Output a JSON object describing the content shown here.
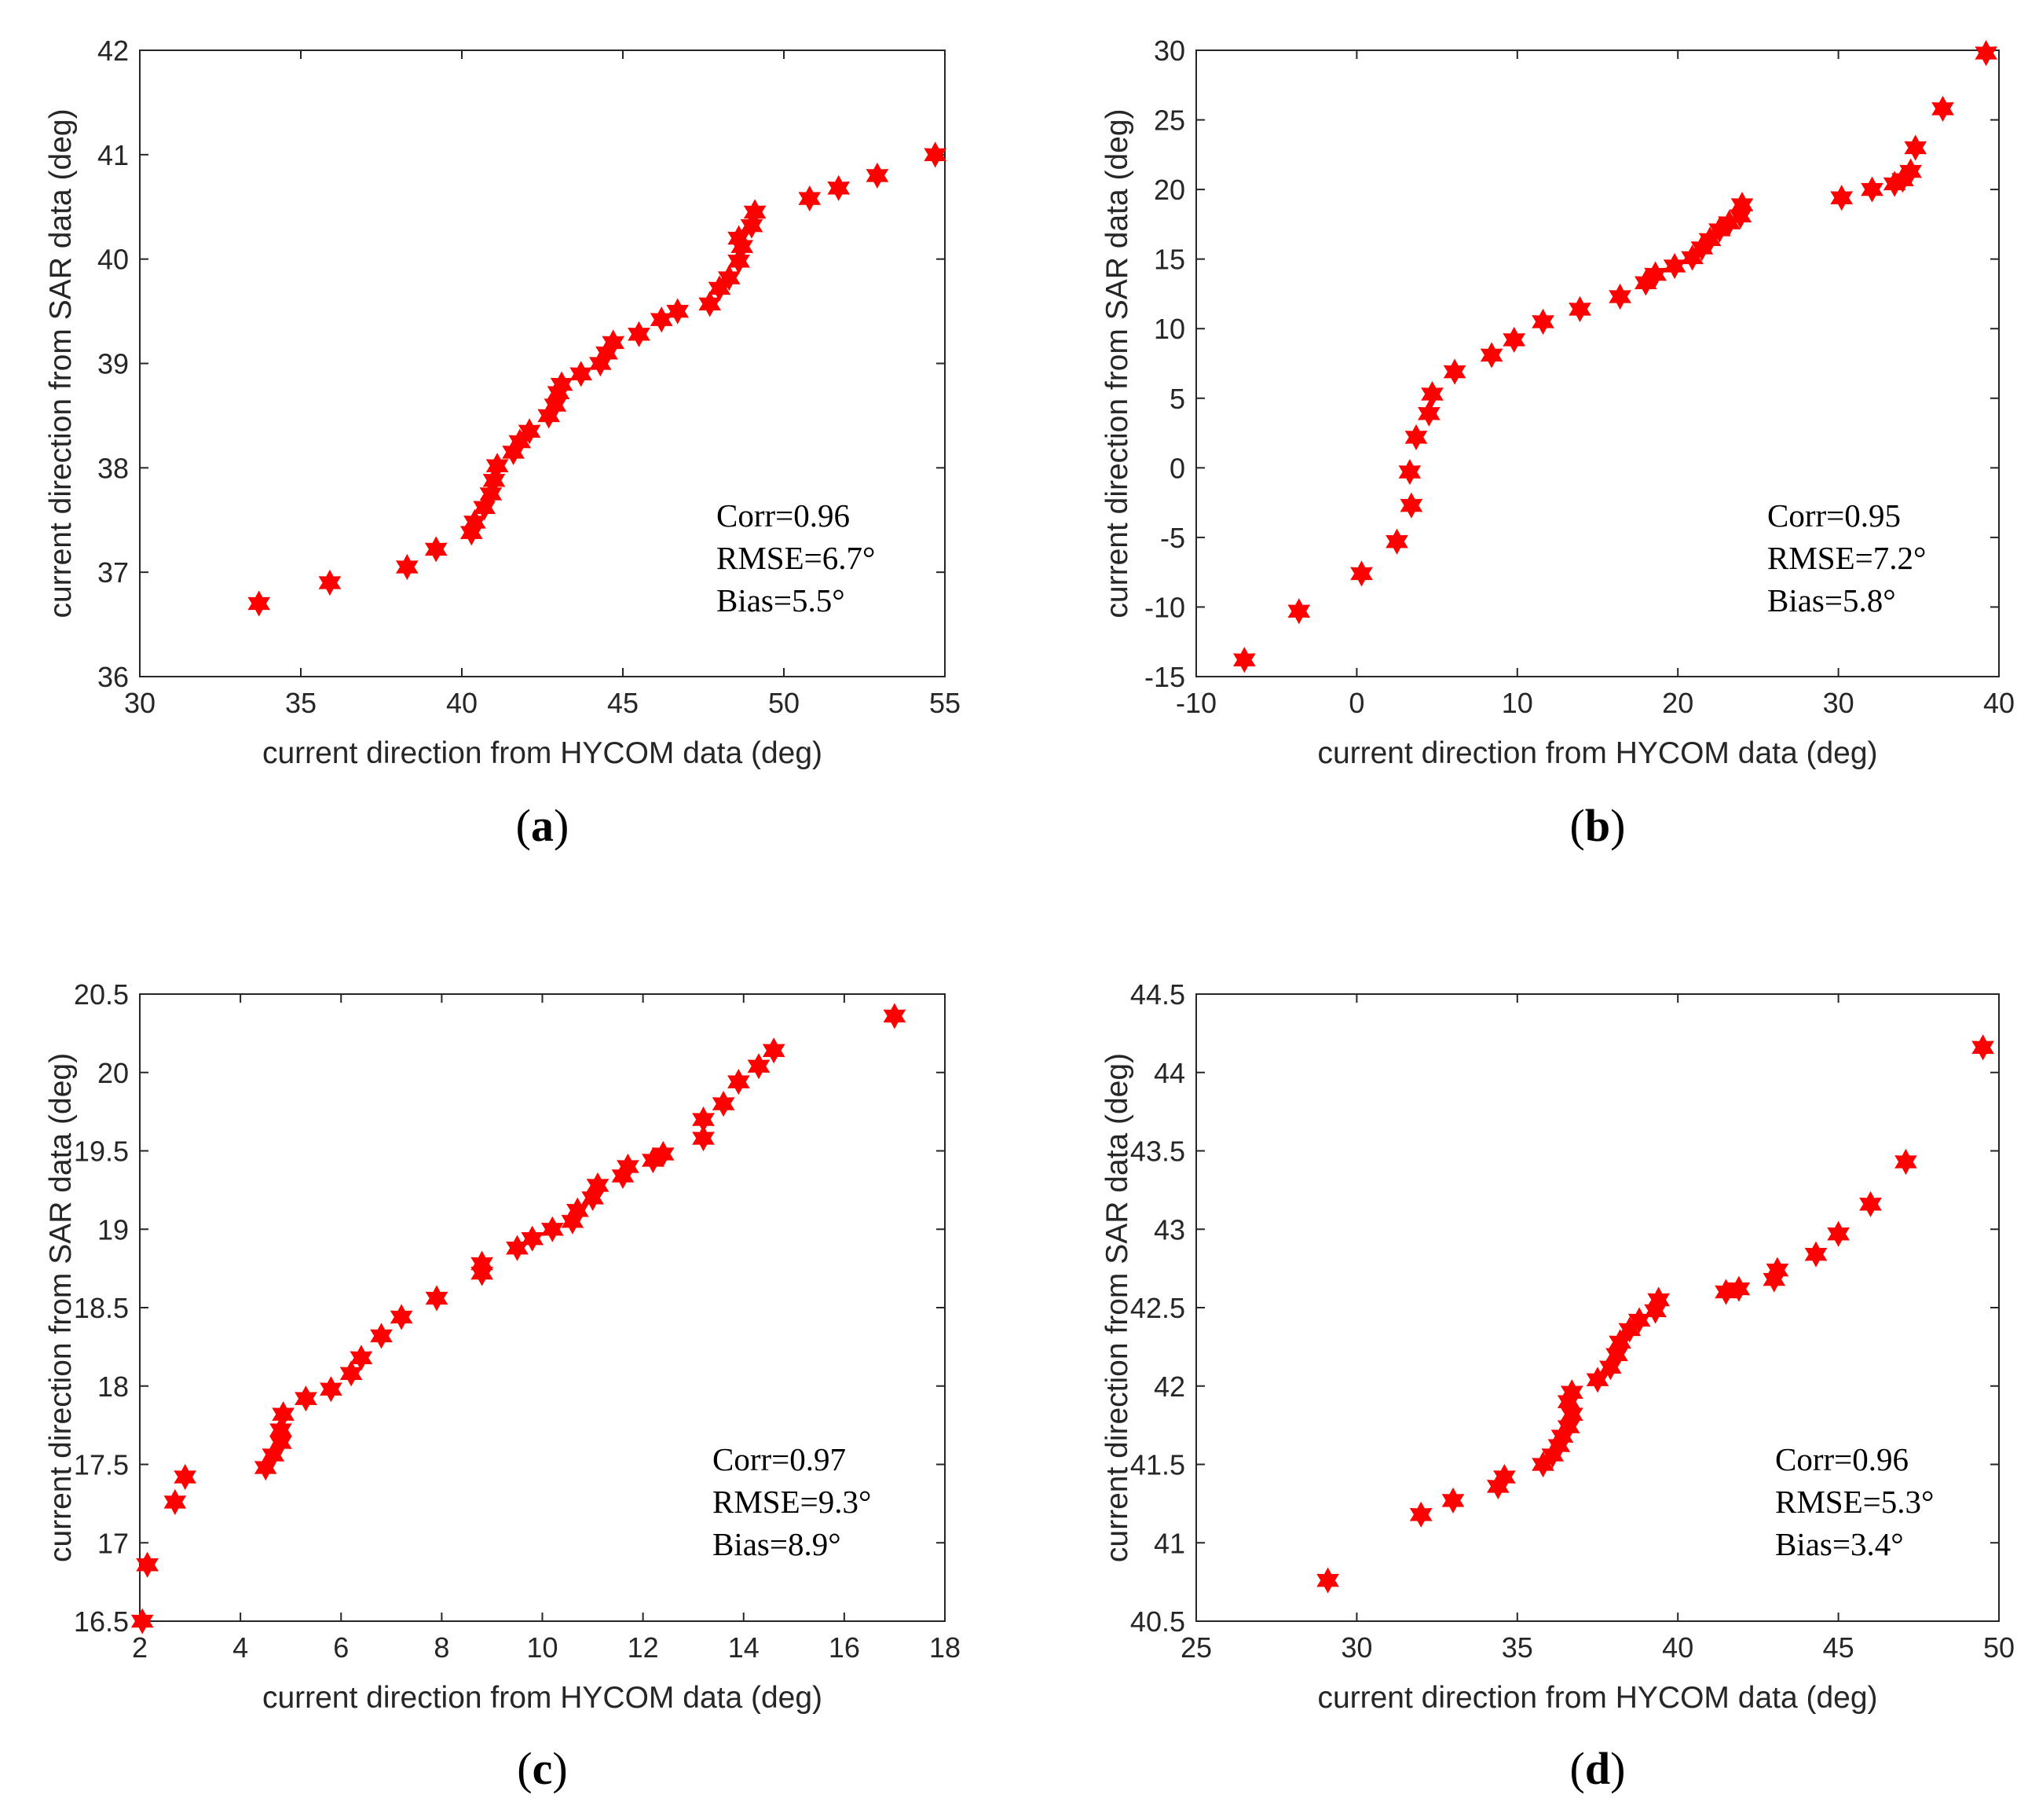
{
  "marker_color": "#ff0000",
  "chart_data": [
    {
      "type": "scatter",
      "panel_letter": "a",
      "xlabel": "current direction from HYCOM data (deg)",
      "ylabel": "current direction from SAR data (deg)",
      "xlim": [
        30,
        55
      ],
      "ylim": [
        36,
        42
      ],
      "xticks": [
        30,
        35,
        40,
        45,
        50,
        55
      ],
      "yticks": [
        36,
        37,
        38,
        39,
        40,
        41,
        42
      ],
      "stats": {
        "corr": "Corr=0.96",
        "rmse": "RMSE=6.7°",
        "bias": "Bias=5.5°"
      },
      "points": [
        [
          33.7,
          36.7
        ],
        [
          35.9,
          36.9
        ],
        [
          38.3,
          37.05
        ],
        [
          39.2,
          37.22
        ],
        [
          40.3,
          37.38
        ],
        [
          40.4,
          37.48
        ],
        [
          40.7,
          37.62
        ],
        [
          40.9,
          37.75
        ],
        [
          41.0,
          37.88
        ],
        [
          41.1,
          38.02
        ],
        [
          41.6,
          38.15
        ],
        [
          41.8,
          38.25
        ],
        [
          42.1,
          38.35
        ],
        [
          42.7,
          38.5
        ],
        [
          42.9,
          38.6
        ],
        [
          43.0,
          38.72
        ],
        [
          43.1,
          38.8
        ],
        [
          43.7,
          38.9
        ],
        [
          44.3,
          39.0
        ],
        [
          44.5,
          39.1
        ],
        [
          44.7,
          39.2
        ],
        [
          45.5,
          39.28
        ],
        [
          46.2,
          39.42
        ],
        [
          46.7,
          39.5
        ],
        [
          47.7,
          39.57
        ],
        [
          48.0,
          39.72
        ],
        [
          48.3,
          39.82
        ],
        [
          48.6,
          39.98
        ],
        [
          48.7,
          40.12
        ],
        [
          48.6,
          40.2
        ],
        [
          49.0,
          40.32
        ],
        [
          49.1,
          40.45
        ],
        [
          50.8,
          40.58
        ],
        [
          51.7,
          40.68
        ],
        [
          52.9,
          40.8
        ],
        [
          54.7,
          41.0
        ]
      ]
    },
    {
      "type": "scatter",
      "panel_letter": "b",
      "xlabel": "current direction from HYCOM data (deg)",
      "ylabel": "current direction from SAR data (deg)",
      "xlim": [
        -10,
        40
      ],
      "ylim": [
        -15,
        30
      ],
      "xticks": [
        -10,
        0,
        10,
        20,
        30,
        40
      ],
      "yticks": [
        -15,
        -10,
        -5,
        0,
        5,
        10,
        15,
        20,
        25,
        30
      ],
      "stats": {
        "corr": "Corr=0.95",
        "rmse": "RMSE=7.2°",
        "bias": "Bias=5.8°"
      },
      "points": [
        [
          -7.0,
          -13.8
        ],
        [
          -3.6,
          -10.3
        ],
        [
          0.3,
          -7.6
        ],
        [
          2.5,
          -5.3
        ],
        [
          3.4,
          -2.7
        ],
        [
          3.3,
          -0.3
        ],
        [
          3.7,
          2.2
        ],
        [
          4.5,
          3.9
        ],
        [
          4.7,
          5.3
        ],
        [
          6.1,
          6.9
        ],
        [
          8.4,
          8.1
        ],
        [
          9.8,
          9.2
        ],
        [
          11.6,
          10.5
        ],
        [
          13.9,
          11.4
        ],
        [
          16.4,
          12.3
        ],
        [
          18.0,
          13.3
        ],
        [
          18.6,
          13.9
        ],
        [
          19.8,
          14.5
        ],
        [
          20.9,
          15.1
        ],
        [
          21.5,
          15.8
        ],
        [
          22.0,
          16.4
        ],
        [
          22.6,
          17.1
        ],
        [
          23.2,
          17.6
        ],
        [
          23.9,
          18.1
        ],
        [
          24.0,
          18.9
        ],
        [
          30.2,
          19.4
        ],
        [
          32.1,
          20.0
        ],
        [
          33.5,
          20.4
        ],
        [
          34.0,
          20.7
        ],
        [
          34.5,
          21.3
        ],
        [
          34.8,
          23.0
        ],
        [
          36.5,
          25.8
        ],
        [
          39.2,
          29.8
        ]
      ]
    },
    {
      "type": "scatter",
      "panel_letter": "c",
      "xlabel": "current direction from HYCOM data (deg)",
      "ylabel": "current direction from SAR data (deg)",
      "xlim": [
        2,
        18
      ],
      "ylim": [
        16.5,
        20.5
      ],
      "xticks": [
        2,
        4,
        6,
        8,
        10,
        12,
        14,
        16,
        18
      ],
      "yticks": [
        16.5,
        17,
        17.5,
        18,
        18.5,
        19,
        19.5,
        20,
        20.5
      ],
      "stats": {
        "corr": "Corr=0.97",
        "rmse": "RMSE=9.3°",
        "bias": "Bias=8.9°"
      },
      "points": [
        [
          2.05,
          16.5
        ],
        [
          2.15,
          16.86
        ],
        [
          2.7,
          17.26
        ],
        [
          2.9,
          17.42
        ],
        [
          4.5,
          17.48
        ],
        [
          4.65,
          17.56
        ],
        [
          4.8,
          17.64
        ],
        [
          4.8,
          17.72
        ],
        [
          4.85,
          17.82
        ],
        [
          5.3,
          17.92
        ],
        [
          5.8,
          17.98
        ],
        [
          6.2,
          18.08
        ],
        [
          6.4,
          18.18
        ],
        [
          6.8,
          18.32
        ],
        [
          7.2,
          18.44
        ],
        [
          7.9,
          18.56
        ],
        [
          8.8,
          18.72
        ],
        [
          8.8,
          18.78
        ],
        [
          9.5,
          18.88
        ],
        [
          9.8,
          18.94
        ],
        [
          10.2,
          19.0
        ],
        [
          10.6,
          19.05
        ],
        [
          10.7,
          19.12
        ],
        [
          11.0,
          19.2
        ],
        [
          11.1,
          19.28
        ],
        [
          11.6,
          19.34
        ],
        [
          11.7,
          19.4
        ],
        [
          12.2,
          19.44
        ],
        [
          12.4,
          19.48
        ],
        [
          13.2,
          19.58
        ],
        [
          13.2,
          19.7
        ],
        [
          13.6,
          19.8
        ],
        [
          13.9,
          19.94
        ],
        [
          14.3,
          20.04
        ],
        [
          14.6,
          20.14
        ],
        [
          17.0,
          20.36
        ]
      ]
    },
    {
      "type": "scatter",
      "panel_letter": "d",
      "xlabel": "current direction from HYCOM data (deg)",
      "ylabel": "current direction from SAR data (deg)",
      "xlim": [
        25,
        50
      ],
      "ylim": [
        40.5,
        44.5
      ],
      "xticks": [
        25,
        30,
        35,
        40,
        45,
        50
      ],
      "yticks": [
        40.5,
        41,
        41.5,
        42,
        42.5,
        43,
        43.5,
        44,
        44.5
      ],
      "stats": {
        "corr": "Corr=0.96",
        "rmse": "RMSE=5.3°",
        "bias": "Bias=3.4°"
      },
      "points": [
        [
          29.1,
          40.76
        ],
        [
          32.0,
          41.18
        ],
        [
          33.0,
          41.27
        ],
        [
          34.4,
          41.36
        ],
        [
          34.6,
          41.42
        ],
        [
          35.8,
          41.5
        ],
        [
          36.1,
          41.56
        ],
        [
          36.3,
          41.62
        ],
        [
          36.4,
          41.68
        ],
        [
          36.6,
          41.74
        ],
        [
          36.7,
          41.82
        ],
        [
          36.6,
          41.9
        ],
        [
          36.7,
          41.96
        ],
        [
          37.5,
          42.04
        ],
        [
          37.9,
          42.12
        ],
        [
          38.1,
          42.2
        ],
        [
          38.2,
          42.28
        ],
        [
          38.5,
          42.36
        ],
        [
          38.8,
          42.42
        ],
        [
          39.3,
          42.48
        ],
        [
          39.4,
          42.55
        ],
        [
          41.5,
          42.6
        ],
        [
          41.9,
          42.62
        ],
        [
          43.0,
          42.68
        ],
        [
          43.1,
          42.74
        ],
        [
          44.3,
          42.84
        ],
        [
          45.0,
          42.97
        ],
        [
          46.0,
          43.16
        ],
        [
          47.1,
          43.43
        ],
        [
          49.5,
          44.16
        ]
      ]
    }
  ]
}
